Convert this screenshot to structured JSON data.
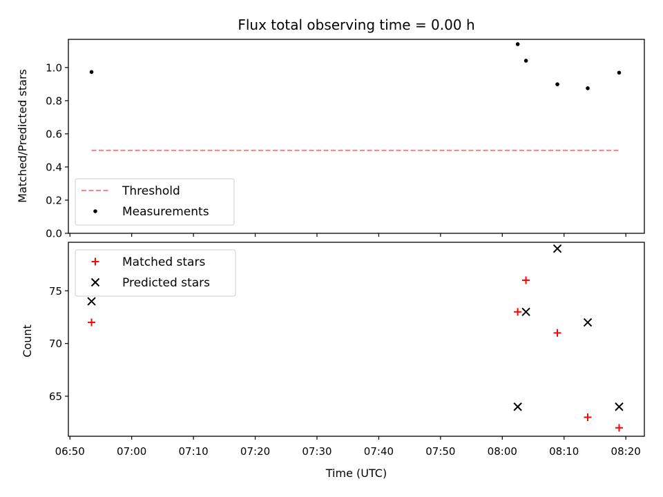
{
  "chart_data": {
    "type": "scatter",
    "title": "Flux total observing time = 0.00 h",
    "xlabel": "Time (UTC)",
    "x_ticks": [
      "06:50",
      "07:00",
      "07:10",
      "07:20",
      "07:30",
      "07:40",
      "07:50",
      "08:00",
      "08:10",
      "08:20"
    ],
    "x_range_minutes": [
      "06:49:45",
      "08:23:00"
    ],
    "times": [
      "06:53:30",
      "08:02:30",
      "08:03:50",
      "08:08:55",
      "08:13:50",
      "08:18:55"
    ],
    "top": {
      "ylabel": "Matched/Predicted stars",
      "ylim": [
        0.0,
        1.17
      ],
      "yticks": [
        "0.0",
        "0.2",
        "0.4",
        "0.6",
        "0.8",
        "1.0"
      ],
      "legend": {
        "placement": "lower-left",
        "items": [
          {
            "label": "Threshold",
            "style": "dashed-line",
            "color": "#ff8080"
          },
          {
            "label": "Measurements",
            "style": "dot",
            "color": "#000000"
          }
        ]
      },
      "threshold": {
        "value": 0.5,
        "color": "#ff8080"
      },
      "measurements": [
        0.973,
        1.141,
        1.041,
        0.899,
        0.875,
        0.969
      ]
    },
    "bottom": {
      "ylabel": "Count",
      "ylim": [
        61.2,
        79.6
      ],
      "yticks": [
        "65",
        "70",
        "75"
      ],
      "legend": {
        "placement": "upper-left",
        "items": [
          {
            "label": "Matched stars",
            "style": "plus",
            "color": "#ff0000"
          },
          {
            "label": "Predicted stars",
            "style": "x",
            "color": "#000000"
          }
        ]
      },
      "matched": [
        72,
        73,
        76,
        71,
        63,
        62
      ],
      "predicted": [
        74,
        64,
        73,
        79,
        72,
        64
      ]
    }
  }
}
